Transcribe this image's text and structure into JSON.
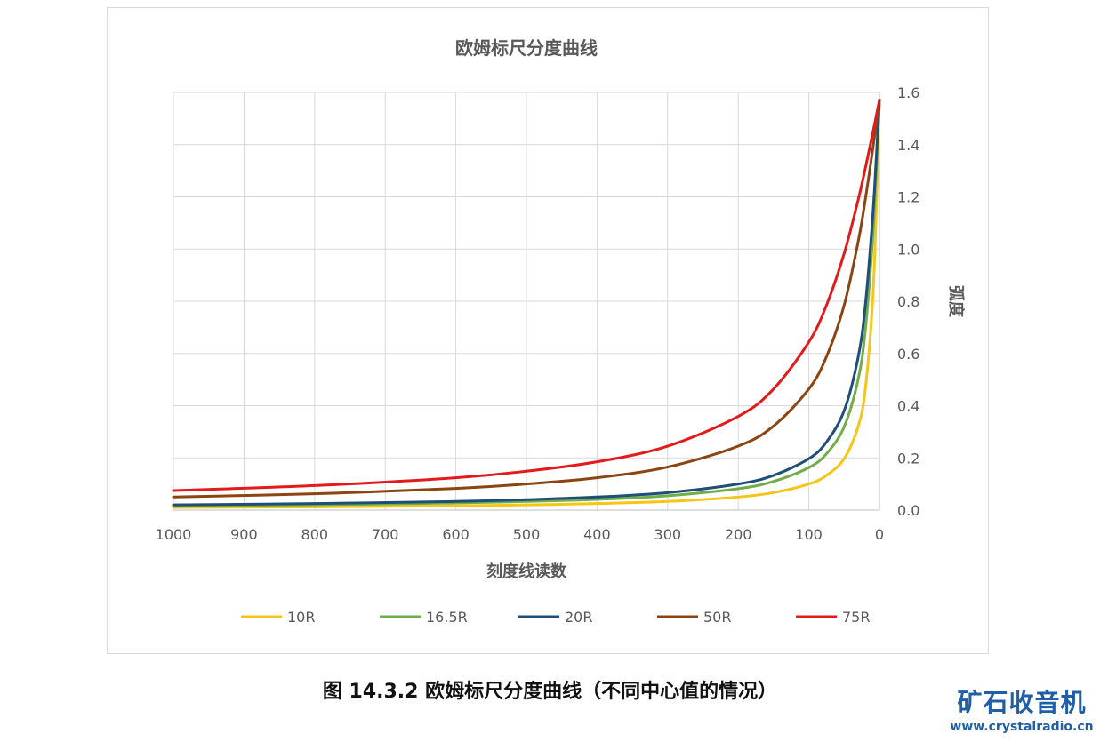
{
  "chart_data": {
    "type": "line",
    "title": "欧姆标尺分度曲线",
    "xlabel": "刻度线读数",
    "ylabel": "弧度",
    "x_reversed": true,
    "xlim": [
      0,
      1000
    ],
    "ylim": [
      0,
      1.6
    ],
    "x_ticks": [
      "1000",
      "900",
      "800",
      "700",
      "600",
      "500",
      "400",
      "300",
      "200",
      "100",
      "0"
    ],
    "y_ticks": [
      "0.0",
      "0.2",
      "0.4",
      "0.6",
      "0.8",
      "1.0",
      "1.2",
      "1.4",
      "1.6"
    ],
    "y_axis_position": "right",
    "grid": true,
    "legend_position": "bottom",
    "x": [
      1000,
      800,
      600,
      500,
      400,
      300,
      200,
      150,
      100,
      75,
      50,
      30,
      20,
      10,
      5,
      2,
      0
    ],
    "series": [
      {
        "name": "10R",
        "color": "#f5c518",
        "values": [
          0.01,
          0.0125,
          0.0167,
          0.02,
          0.025,
          0.033,
          0.05,
          0.067,
          0.1,
          0.133,
          0.197,
          0.322,
          0.464,
          0.785,
          1.107,
          1.373,
          1.571
        ]
      },
      {
        "name": "16.5R",
        "color": "#70ad47",
        "values": [
          0.0165,
          0.0206,
          0.0275,
          0.033,
          0.041,
          0.055,
          0.082,
          0.11,
          0.163,
          0.216,
          0.319,
          0.503,
          0.69,
          1.026,
          1.277,
          1.45,
          1.571
        ]
      },
      {
        "name": "20R",
        "color": "#1f4e79",
        "values": [
          0.02,
          0.025,
          0.033,
          0.04,
          0.05,
          0.067,
          0.1,
          0.133,
          0.197,
          0.261,
          0.381,
          0.588,
          0.785,
          1.107,
          1.326,
          1.471,
          1.571
        ]
      },
      {
        "name": "50R",
        "color": "#8b4513",
        "values": [
          0.05,
          0.0625,
          0.083,
          0.1,
          0.124,
          0.165,
          0.245,
          0.322,
          0.464,
          0.588,
          0.785,
          1.03,
          1.19,
          1.373,
          1.471,
          1.531,
          1.571
        ]
      },
      {
        "name": "75R",
        "color": "#e31a1c",
        "values": [
          0.075,
          0.094,
          0.124,
          0.149,
          0.185,
          0.245,
          0.359,
          0.464,
          0.644,
          0.785,
          0.983,
          1.19,
          1.31,
          1.438,
          1.504,
          1.544,
          1.571
        ]
      }
    ]
  },
  "caption": "图 14.3.2 欧姆标尺分度曲线（不同中心值的情况）",
  "logo": {
    "main": "矿石收音机",
    "url": "www.crystalradio.cn"
  }
}
